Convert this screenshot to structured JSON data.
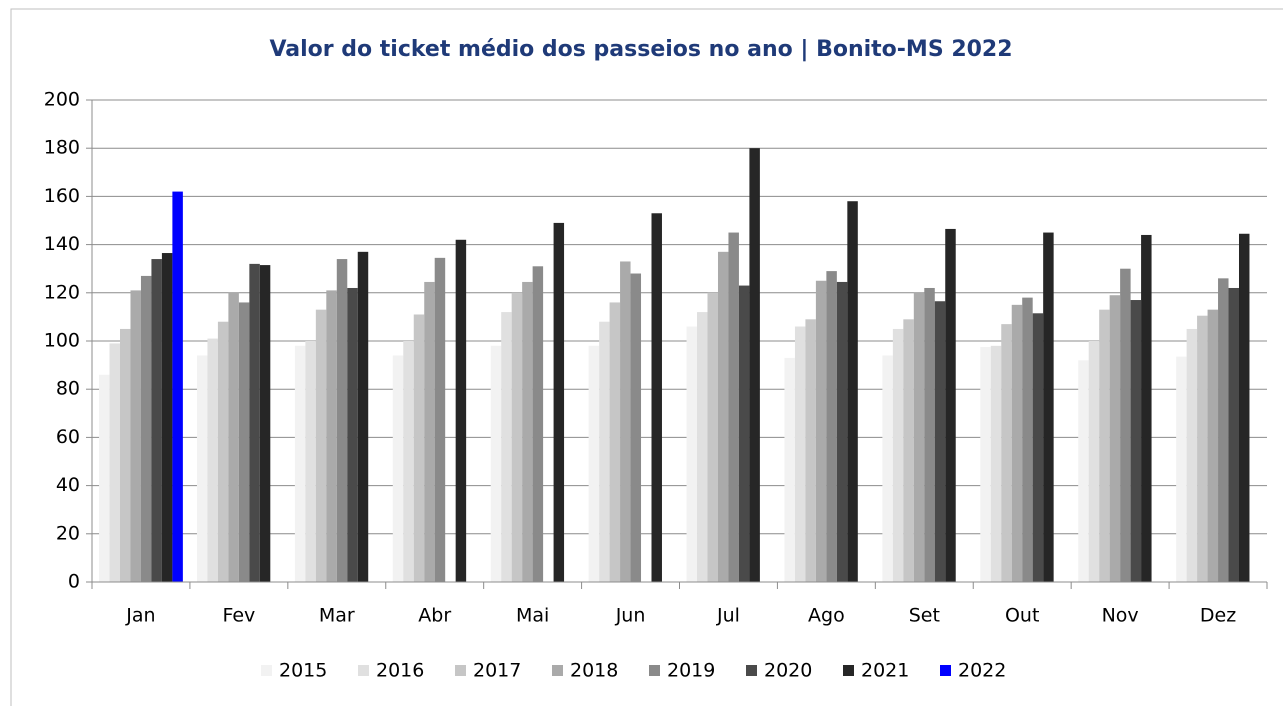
{
  "chart_data": {
    "type": "bar",
    "title": "Valor do ticket médio dos passeios no ano | Bonito-MS 2022",
    "categories": [
      "Jan",
      "Fev",
      "Mar",
      "Abr",
      "Mai",
      "Jun",
      "Jul",
      "Ago",
      "Set",
      "Out",
      "Nov",
      "Dez"
    ],
    "series": [
      {
        "name": "2015",
        "color": "#f2f2f2",
        "values": [
          86,
          94,
          98,
          94,
          98,
          98,
          106,
          93,
          94,
          97.5,
          92,
          93.5
        ]
      },
      {
        "name": "2016",
        "color": "#e0e0e0",
        "values": [
          99,
          101,
          100,
          100,
          112,
          108,
          112,
          106,
          105,
          98,
          100,
          105
        ]
      },
      {
        "name": "2017",
        "color": "#c6c6c6",
        "values": [
          105,
          108,
          113,
          111,
          120,
          116,
          120,
          109,
          109,
          107,
          113,
          110.5
        ]
      },
      {
        "name": "2018",
        "color": "#aaaaaa",
        "values": [
          121,
          120,
          121,
          124.5,
          124.5,
          133,
          137,
          125,
          120,
          115,
          119,
          113
        ]
      },
      {
        "name": "2019",
        "color": "#8a8a8a",
        "values": [
          127,
          116,
          134,
          134.5,
          131,
          128,
          145,
          129,
          122,
          118,
          130,
          126
        ]
      },
      {
        "name": "2020",
        "color": "#4a4a4a",
        "values": [
          134,
          132,
          122,
          null,
          null,
          null,
          123,
          124.5,
          116.5,
          111.5,
          117,
          122
        ]
      },
      {
        "name": "2021",
        "color": "#262626",
        "values": [
          136.5,
          131.5,
          137,
          142,
          149,
          153,
          180,
          158,
          146.5,
          145,
          144,
          144.5
        ]
      },
      {
        "name": "2022",
        "color": "#0000ff",
        "values": [
          162,
          null,
          null,
          null,
          null,
          null,
          null,
          null,
          null,
          null,
          null,
          null
        ]
      }
    ],
    "ylim": [
      0,
      200
    ],
    "yticks": [
      0,
      20,
      40,
      60,
      80,
      100,
      120,
      140,
      160,
      180,
      200
    ],
    "grid": true,
    "legend": "bottom"
  }
}
